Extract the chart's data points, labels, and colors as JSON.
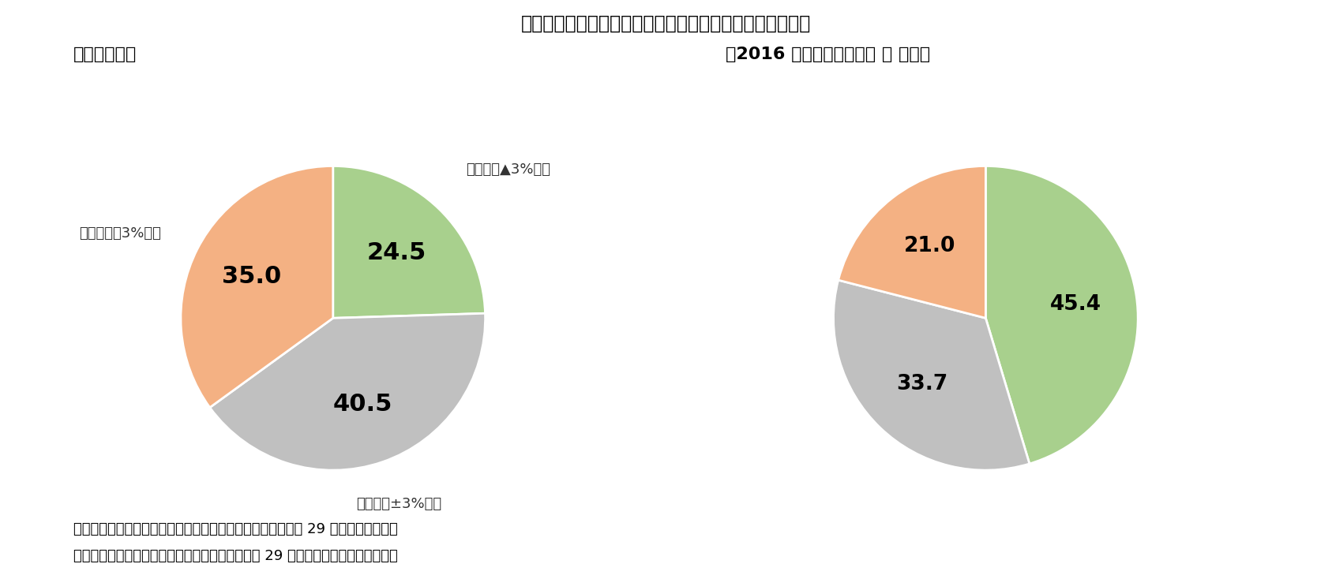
{
  "title": "図表２：対前年度で返礼品割合を増減させた自治体の占率",
  "left_subtitle": "【全自治体】",
  "right_subtitle": "【2016 年度の返礼品割合 ３ 割超】",
  "pie1_values": [
    24.5,
    40.5,
    35.0
  ],
  "pie1_colors": [
    "#a8d08d",
    "#c0c0c0",
    "#f4b183"
  ],
  "pie1_value_strs": [
    "24.5",
    "40.5",
    "35.0"
  ],
  "pie1_labels": [
    "対前年度▲3%以下",
    "対前年度±3%以内",
    "対前年度＋3%以上"
  ],
  "pie2_values": [
    45.4,
    33.7,
    21.0
  ],
  "pie2_colors": [
    "#a8d08d",
    "#c0c0c0",
    "#f4b183"
  ],
  "pie2_value_strs": [
    "45.4",
    "33.7",
    "21.0"
  ],
  "footnote1": "（資料）総務省「ふるさと納税に関する現況調査結果（平成 29 年度実績）」及び",
  "footnote2": "　　「ふるさと納税に関する現況調査結果（平成 29 年７月４日）」に基づき作成",
  "bg_color": "#ffffff",
  "title_fontsize": 17,
  "subtitle_fontsize": 16,
  "label_fontsize": 13,
  "value_fontsize": 22,
  "value_fontsize2": 19,
  "footnote_fontsize": 13
}
